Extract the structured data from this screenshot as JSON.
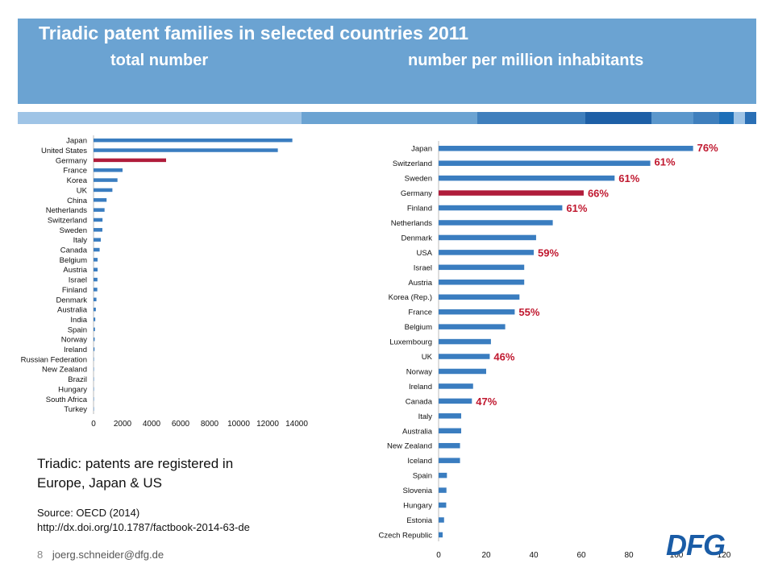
{
  "header": {
    "title": "Triadic patent families in selected countries 2011",
    "subtitle_left": "total number",
    "subtitle_right": "number per million inhabitants"
  },
  "note": {
    "line1": "Triadic: patents are registered in",
    "line2": "Europe, Japan & US"
  },
  "source": {
    "line1": "Source: OECD (2014)",
    "line2": "http://dx.doi.org/10.1787/factbook-2014-63-de"
  },
  "footer": {
    "page": "8",
    "email": "joerg.schneider@dfg.de"
  },
  "logo": {
    "text": "DFG"
  },
  "colors": {
    "header": "#6ba3d2",
    "bar": "#3a7dc0",
    "highlight": "#b01c3b",
    "annotation": "#c0182f"
  },
  "chart_data": [
    {
      "type": "bar",
      "orientation": "horizontal",
      "categories": [
        "Japan",
        "United States",
        "Germany",
        "France",
        "Korea",
        "UK",
        "China",
        "Netherlands",
        "Switzerland",
        "Sweden",
        "Italy",
        "Canada",
        "Belgium",
        "Austria",
        "Israel",
        "Finland",
        "Denmark",
        "Australia",
        "India",
        "Spain",
        "Norway",
        "Ireland",
        "Russian Federation",
        "New Zealand",
        "Brazil",
        "Hungary",
        "South Africa",
        "Turkey"
      ],
      "values": [
        13700,
        12700,
        5000,
        2000,
        1650,
        1300,
        900,
        760,
        620,
        610,
        500,
        420,
        280,
        280,
        270,
        260,
        200,
        160,
        120,
        100,
        80,
        70,
        30,
        20,
        20,
        15,
        10,
        10
      ],
      "highlight": "Germany",
      "xlim": [
        0,
        14000
      ],
      "xticks": [
        "0",
        "2000",
        "4000",
        "6000",
        "8000",
        "10000",
        "12000",
        "14000"
      ]
    },
    {
      "type": "bar",
      "orientation": "horizontal",
      "categories": [
        "Japan",
        "Switzerland",
        "Sweden",
        "Germany",
        "Finland",
        "Netherlands",
        "Denmark",
        "USA",
        "Israel",
        "Austria",
        "Korea (Rep.)",
        "France",
        "Belgium",
        "Luxembourg",
        "UK",
        "Norway",
        "Ireland",
        "Canada",
        "Italy",
        "Australia",
        "New Zealand",
        "Iceland",
        "Spain",
        "Slovenia",
        "Hungary",
        "Estonia",
        "Czech Republic"
      ],
      "values": [
        107,
        89,
        74,
        61,
        52,
        48,
        41,
        40,
        36,
        36,
        34,
        32,
        28,
        22,
        21.5,
        20,
        14.5,
        14,
        9.5,
        9.5,
        9,
        9,
        3.5,
        3.3,
        3.2,
        2.3,
        1.7
      ],
      "highlight": "Germany",
      "xlim": [
        0,
        120
      ],
      "xticks": [
        "0",
        "20",
        "40",
        "60",
        "80",
        "100",
        "120"
      ],
      "annotations": [
        {
          "category": "Japan",
          "text": "76%"
        },
        {
          "category": "Switzerland",
          "text": "61%"
        },
        {
          "category": "Sweden",
          "text": "61%"
        },
        {
          "category": "Germany",
          "text": "66%"
        },
        {
          "category": "Finland",
          "text": "61%"
        },
        {
          "category": "USA",
          "text": "59%"
        },
        {
          "category": "France",
          "text": "55%"
        },
        {
          "category": "UK",
          "text": "46%"
        },
        {
          "category": "Canada",
          "text": "47%"
        }
      ]
    }
  ]
}
